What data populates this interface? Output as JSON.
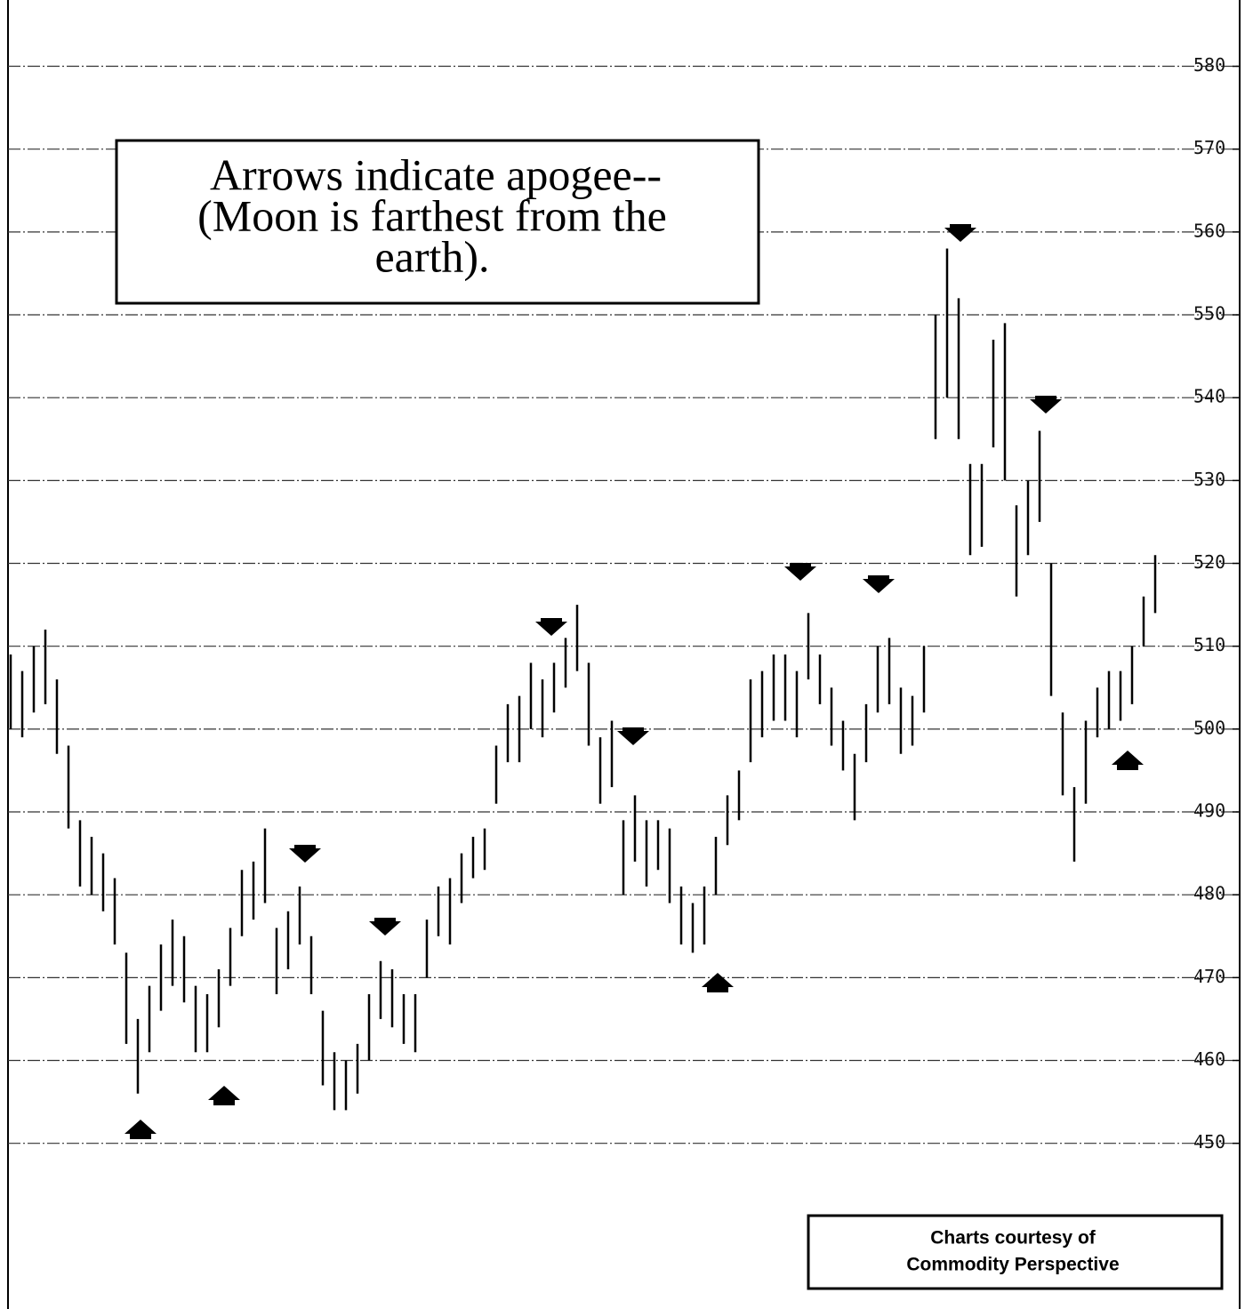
{
  "chart_data": {
    "type": "highlow",
    "color": "#000000",
    "ylim": [
      430,
      588
    ],
    "yticks": [
      450,
      460,
      470,
      480,
      490,
      500,
      510,
      520,
      530,
      540,
      550,
      560,
      570,
      580
    ],
    "grid": true,
    "annotation": [
      "Arrows indicate apogee--",
      "(Moon is farthest from the",
      "earth)."
    ],
    "credit": [
      "Charts courtesy of",
      "Commodity Perspective"
    ],
    "high": [
      509,
      507,
      510,
      512,
      506,
      498,
      489,
      487,
      485,
      482,
      473,
      465,
      469,
      474,
      477,
      475,
      469,
      468,
      471,
      476,
      483,
      484,
      488,
      476,
      478,
      481,
      475,
      466,
      461,
      460,
      462,
      468,
      472,
      471,
      468,
      468,
      477,
      481,
      482,
      485,
      487,
      488,
      498,
      503,
      504,
      508,
      506,
      508,
      511,
      515,
      508,
      499,
      501,
      489,
      492,
      489,
      489,
      488,
      481,
      479,
      481,
      487,
      492,
      495,
      506,
      507,
      509,
      509,
      507,
      514,
      509,
      505,
      501,
      497,
      503,
      510,
      511,
      505,
      504,
      510,
      550,
      558,
      552,
      532,
      532,
      547,
      549,
      527,
      530,
      536,
      520,
      502,
      493,
      501,
      505,
      507,
      507,
      510,
      516,
      521
    ],
    "low": [
      500,
      499,
      502,
      503,
      497,
      488,
      481,
      480,
      478,
      474,
      462,
      456,
      461,
      466,
      469,
      467,
      461,
      461,
      464,
      469,
      475,
      477,
      479,
      468,
      471,
      474,
      468,
      457,
      454,
      454,
      456,
      460,
      465,
      464,
      462,
      461,
      470,
      475,
      474,
      479,
      482,
      483,
      491,
      496,
      496,
      500,
      499,
      502,
      505,
      507,
      498,
      491,
      493,
      480,
      484,
      481,
      483,
      479,
      474,
      473,
      474,
      480,
      486,
      489,
      496,
      499,
      501,
      501,
      499,
      506,
      503,
      498,
      495,
      489,
      496,
      502,
      503,
      497,
      498,
      502,
      535,
      540,
      535,
      521,
      522,
      534,
      530,
      516,
      521,
      525,
      504,
      492,
      484,
      491,
      499,
      500,
      501,
      503,
      510,
      514
    ]
  }
}
